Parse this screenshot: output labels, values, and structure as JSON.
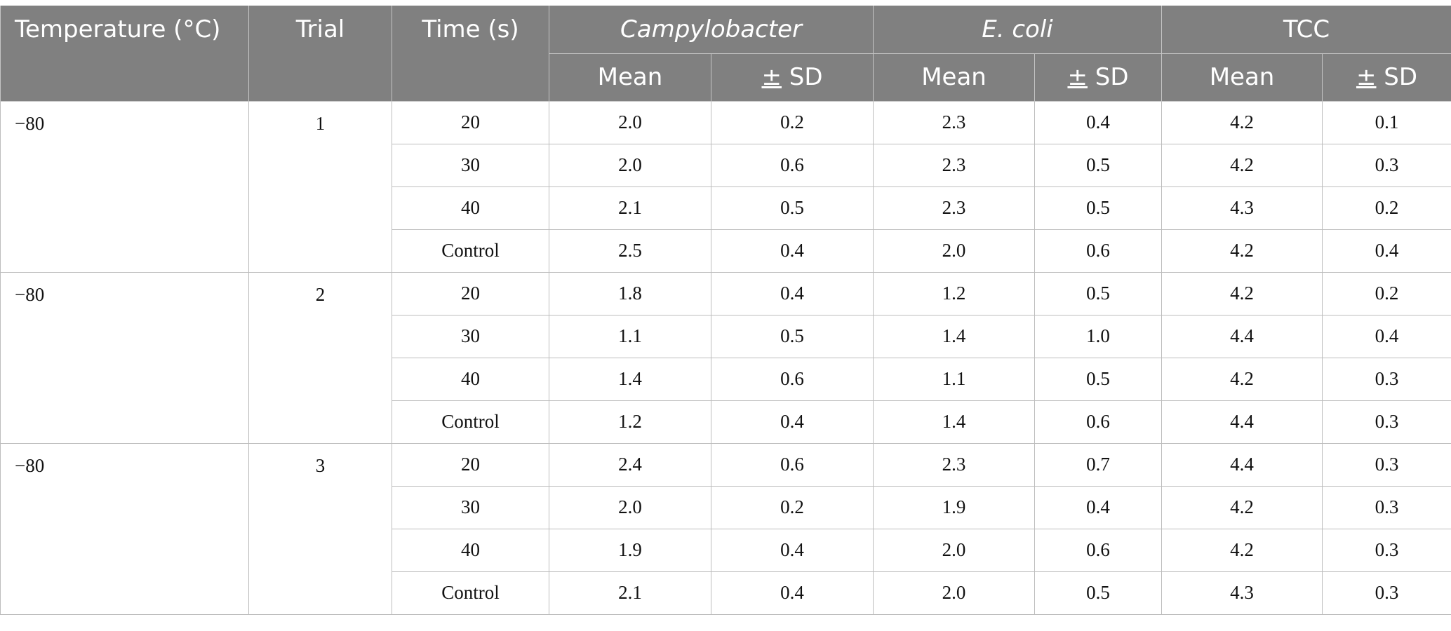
{
  "header": {
    "temperature": "Temperature (°C)",
    "trial": "Trial",
    "time": "Time (s)",
    "campylobacter": "Campylobacter",
    "ecoli": "E. coli",
    "tcc": "TCC",
    "mean": "Mean",
    "pm_symbol": "±",
    "sd": " SD"
  },
  "groups": [
    {
      "temperature": "−80",
      "trial": "1",
      "rows": [
        {
          "time": "20",
          "campy_mean": "2.0",
          "campy_sd": "0.2",
          "ecoli_mean": "2.3",
          "ecoli_sd": "0.4",
          "tcc_mean": "4.2",
          "tcc_sd": "0.1"
        },
        {
          "time": "30",
          "campy_mean": "2.0",
          "campy_sd": "0.6",
          "ecoli_mean": "2.3",
          "ecoli_sd": "0.5",
          "tcc_mean": "4.2",
          "tcc_sd": "0.3"
        },
        {
          "time": "40",
          "campy_mean": "2.1",
          "campy_sd": "0.5",
          "ecoli_mean": "2.3",
          "ecoli_sd": "0.5",
          "tcc_mean": "4.3",
          "tcc_sd": "0.2"
        },
        {
          "time": "Control",
          "campy_mean": "2.5",
          "campy_sd": "0.4",
          "ecoli_mean": "2.0",
          "ecoli_sd": "0.6",
          "tcc_mean": "4.2",
          "tcc_sd": "0.4"
        }
      ]
    },
    {
      "temperature": "−80",
      "trial": "2",
      "rows": [
        {
          "time": "20",
          "campy_mean": "1.8",
          "campy_sd": "0.4",
          "ecoli_mean": "1.2",
          "ecoli_sd": "0.5",
          "tcc_mean": "4.2",
          "tcc_sd": "0.2"
        },
        {
          "time": "30",
          "campy_mean": "1.1",
          "campy_sd": "0.5",
          "ecoli_mean": "1.4",
          "ecoli_sd": "1.0",
          "tcc_mean": "4.4",
          "tcc_sd": "0.4"
        },
        {
          "time": "40",
          "campy_mean": "1.4",
          "campy_sd": "0.6",
          "ecoli_mean": "1.1",
          "ecoli_sd": "0.5",
          "tcc_mean": "4.2",
          "tcc_sd": "0.3"
        },
        {
          "time": "Control",
          "campy_mean": "1.2",
          "campy_sd": "0.4",
          "ecoli_mean": "1.4",
          "ecoli_sd": "0.6",
          "tcc_mean": "4.4",
          "tcc_sd": "0.3"
        }
      ]
    },
    {
      "temperature": "−80",
      "trial": "3",
      "rows": [
        {
          "time": "20",
          "campy_mean": "2.4",
          "campy_sd": "0.6",
          "ecoli_mean": "2.3",
          "ecoli_sd": "0.7",
          "tcc_mean": "4.4",
          "tcc_sd": "0.3"
        },
        {
          "time": "30",
          "campy_mean": "2.0",
          "campy_sd": "0.2",
          "ecoli_mean": "1.9",
          "ecoli_sd": "0.4",
          "tcc_mean": "4.2",
          "tcc_sd": "0.3"
        },
        {
          "time": "40",
          "campy_mean": "1.9",
          "campy_sd": "0.4",
          "ecoli_mean": "2.0",
          "ecoli_sd": "0.6",
          "tcc_mean": "4.2",
          "tcc_sd": "0.3"
        },
        {
          "time": "Control",
          "campy_mean": "2.1",
          "campy_sd": "0.4",
          "ecoli_mean": "2.0",
          "ecoli_sd": "0.5",
          "tcc_mean": "4.3",
          "tcc_sd": "0.3"
        }
      ]
    }
  ]
}
